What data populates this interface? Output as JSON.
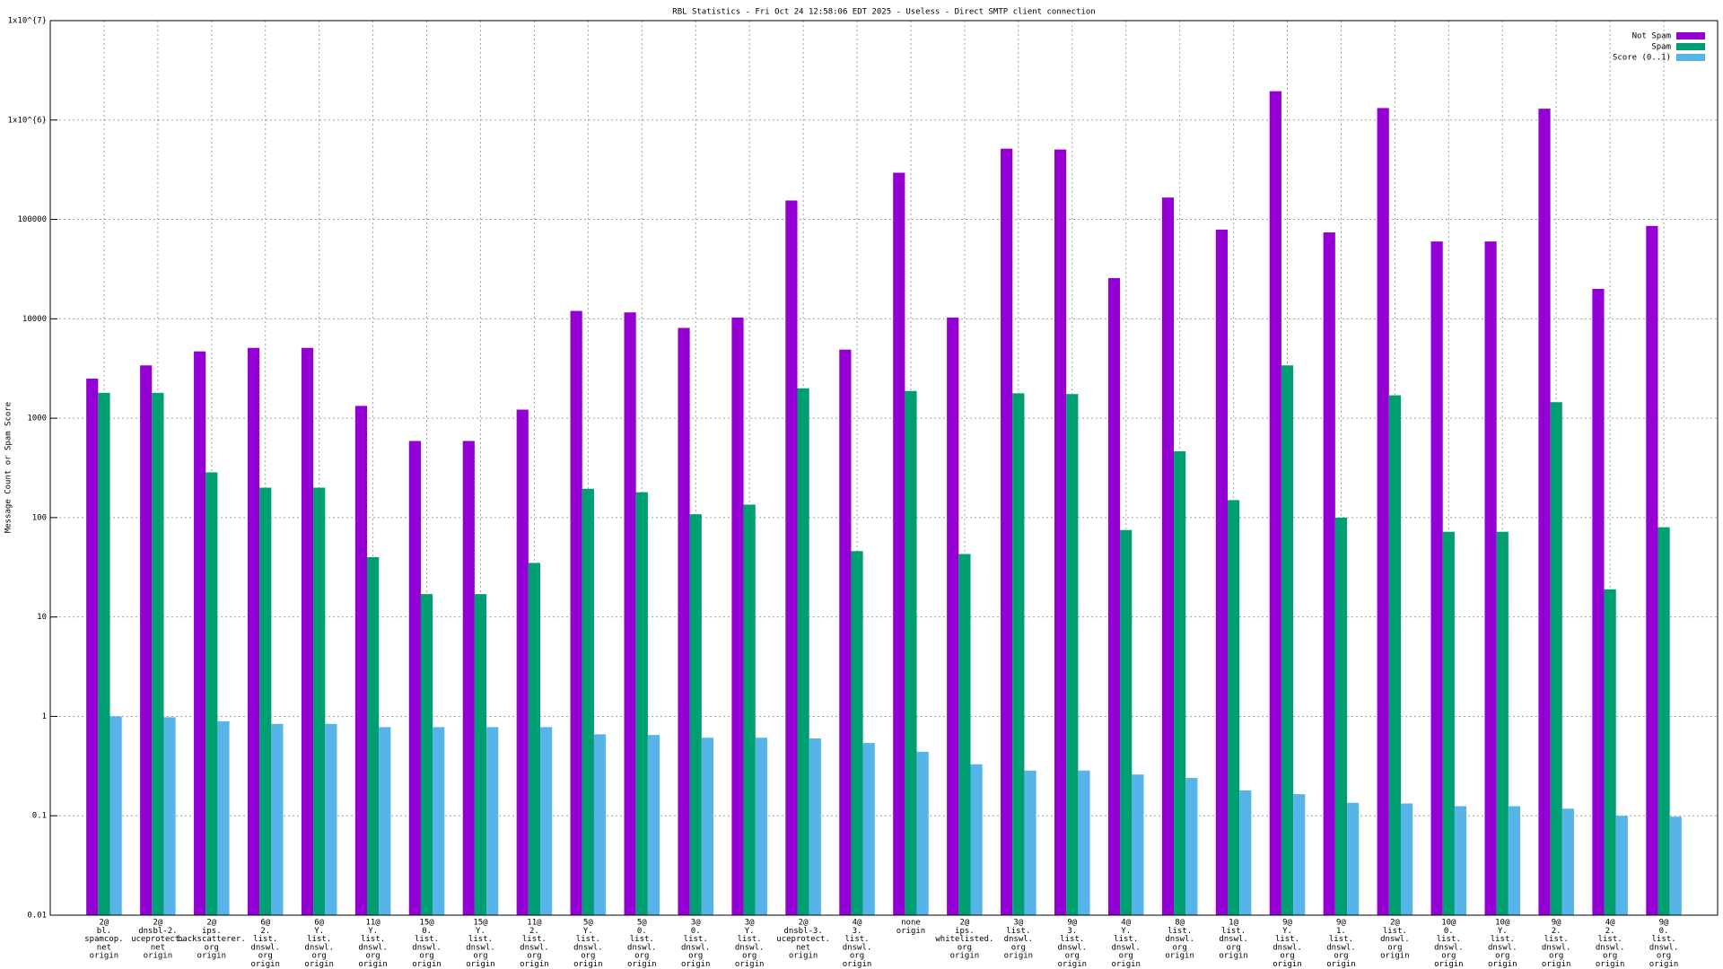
{
  "chart_data": {
    "type": "bar",
    "log_y": true,
    "grid": true,
    "legend": "top-right",
    "title": "RBL Statistics - Fri Oct 24 12:58:06 EDT 2025 - Useless - Direct SMTP client connection",
    "ylabel": "Message Count or Spam Score",
    "ylim": [
      0.01,
      10000000
    ],
    "yticks": [
      0.01,
      0.1,
      1,
      10,
      100,
      1000,
      10000,
      100000,
      {
        "value": 1000000,
        "label": "1x10^{6}"
      },
      {
        "value": 10000000,
        "label": "1x10^{7}"
      }
    ],
    "categories": [
      [
        "2@",
        "bl.",
        "spamcop.",
        "net",
        "origin"
      ],
      [
        "2@",
        "dnsbl-2.",
        "uceprotect.",
        "net",
        "origin"
      ],
      [
        "2@",
        "ips.",
        "backscatterer.",
        "org",
        "origin"
      ],
      [
        "6@",
        "2.",
        "list.",
        "dnswl.",
        "org",
        "origin"
      ],
      [
        "6@",
        "Y.",
        "list.",
        "dnswl.",
        "org",
        "origin"
      ],
      [
        "11@",
        "Y.",
        "list.",
        "dnswl.",
        "org",
        "origin"
      ],
      [
        "15@",
        "0.",
        "list.",
        "dnswl.",
        "org",
        "origin"
      ],
      [
        "15@",
        "Y.",
        "list.",
        "dnswl.",
        "org",
        "origin"
      ],
      [
        "11@",
        "2.",
        "list.",
        "dnswl.",
        "org",
        "origin"
      ],
      [
        "5@",
        "Y.",
        "list.",
        "dnswl.",
        "org",
        "origin"
      ],
      [
        "5@",
        "0.",
        "list.",
        "dnswl.",
        "org",
        "origin"
      ],
      [
        "3@",
        "0.",
        "list.",
        "dnswl.",
        "org",
        "origin"
      ],
      [
        "3@",
        "Y.",
        "list.",
        "dnswl.",
        "org",
        "origin"
      ],
      [
        "2@",
        "dnsbl-3.",
        "uceprotect.",
        "net",
        "origin"
      ],
      [
        "4@",
        "3.",
        "list.",
        "dnswl.",
        "org",
        "origin"
      ],
      [
        "none",
        "origin"
      ],
      [
        "2@",
        "ips.",
        "whitelisted.",
        "org",
        "origin"
      ],
      [
        "3@",
        "list.",
        "dnswl.",
        "org",
        "origin"
      ],
      [
        "9@",
        "3.",
        "list.",
        "dnswl.",
        "org",
        "origin"
      ],
      [
        "4@",
        "Y.",
        "list.",
        "dnswl.",
        "org",
        "origin"
      ],
      [
        "8@",
        "list.",
        "dnswl.",
        "org",
        "origin"
      ],
      [
        "1@",
        "list.",
        "dnswl.",
        "org",
        "origin"
      ],
      [
        "9@",
        "Y.",
        "list.",
        "dnswl.",
        "org",
        "origin"
      ],
      [
        "9@",
        "1.",
        "list.",
        "dnswl.",
        "org",
        "origin"
      ],
      [
        "2@",
        "list.",
        "dnswl.",
        "org",
        "origin"
      ],
      [
        "10@",
        "0.",
        "list.",
        "dnswl.",
        "org",
        "origin"
      ],
      [
        "10@",
        "Y.",
        "list.",
        "dnswl.",
        "org",
        "origin"
      ],
      [
        "9@",
        "2.",
        "list.",
        "dnswl.",
        "org",
        "origin"
      ],
      [
        "4@",
        "2.",
        "list.",
        "dnswl.",
        "org",
        "origin"
      ],
      [
        "9@",
        "0.",
        "list.",
        "dnswl.",
        "org",
        "origin"
      ]
    ],
    "series": [
      {
        "name": "Not Spam",
        "color": "#9400d3",
        "values": [
          2500,
          3400,
          4700,
          5100,
          5100,
          1330,
          590,
          590,
          1220,
          12000,
          11600,
          8100,
          10300,
          155000,
          4900,
          295000,
          10300,
          515000,
          505000,
          25700,
          166000,
          79000,
          1950000,
          74000,
          1320000,
          60000,
          60000,
          1300000,
          20000,
          86000
        ]
      },
      {
        "name": "Spam",
        "color": "#009e73",
        "values": [
          1800,
          1800,
          285,
          200,
          200,
          40,
          17,
          17,
          35,
          195,
          180,
          108,
          135,
          2000,
          46,
          1880,
          43,
          1780,
          1750,
          75,
          465,
          150,
          3400,
          100,
          1700,
          72,
          72,
          1450,
          19,
          80
        ]
      },
      {
        "name": "Score (0..1)",
        "color": "#56b4e9",
        "values": [
          1.0,
          0.98,
          0.89,
          0.84,
          0.84,
          0.78,
          0.78,
          0.78,
          0.78,
          0.66,
          0.65,
          0.61,
          0.61,
          0.6,
          0.54,
          0.44,
          0.33,
          0.285,
          0.285,
          0.26,
          0.24,
          0.18,
          0.165,
          0.135,
          0.133,
          0.125,
          0.125,
          0.118,
          0.1,
          0.098
        ]
      }
    ]
  }
}
